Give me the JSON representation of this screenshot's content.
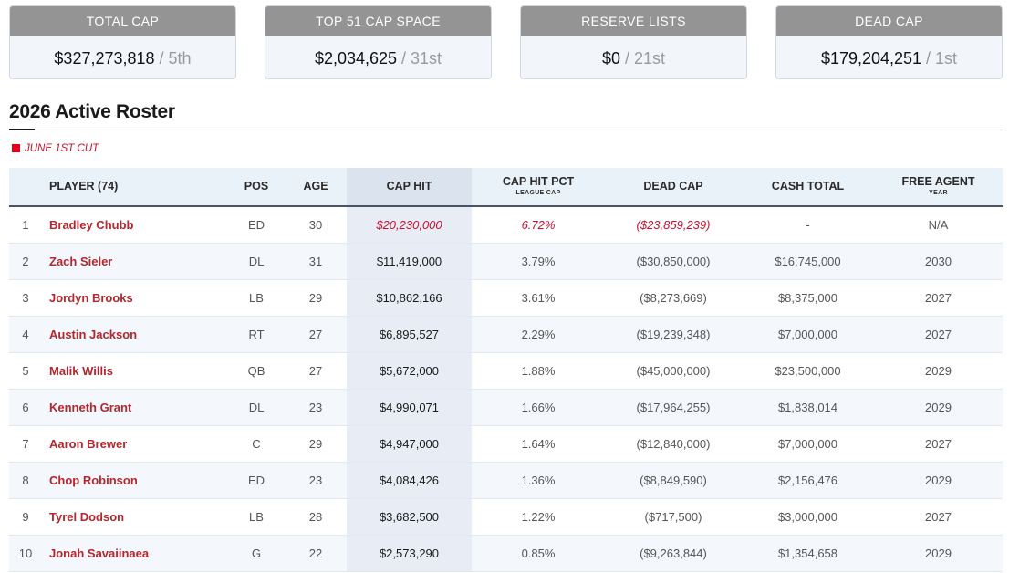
{
  "summary_cards": [
    {
      "label": "TOTAL CAP",
      "value": "$327,273,818",
      "rank": " / 5th"
    },
    {
      "label": "TOP 51 CAP SPACE",
      "value": "$2,034,625",
      "rank": " / 31st"
    },
    {
      "label": "RESERVE LISTS",
      "value": "$0",
      "rank": " / 21st"
    },
    {
      "label": "DEAD CAP",
      "value": "$179,204,251",
      "rank": " / 1st"
    }
  ],
  "section": {
    "title": "2026 Active Roster",
    "legend_label": "JUNE 1ST CUT",
    "legend_color": "#e3001b"
  },
  "table": {
    "headers": {
      "player": "PLAYER (74)",
      "pos": "POS",
      "age": "AGE",
      "cap_hit": "CAP HIT",
      "cap_hit_pct": "CAP HIT PCT",
      "cap_hit_pct_sub": "LEAGUE CAP",
      "dead_cap": "DEAD CAP",
      "cash_total": "CASH TOTAL",
      "free_agent": "FREE AGENT",
      "free_agent_sub": "YEAR"
    },
    "rows": [
      {
        "num": "1",
        "player": "Bradley Chubb",
        "pos": "ED",
        "age": "30",
        "cap_hit": "$20,230,000",
        "cap_hit_pct": "6.72%",
        "dead_cap": "($23,859,239)",
        "cash_total": "-",
        "fa_year": "N/A"
      },
      {
        "num": "2",
        "player": "Zach Sieler",
        "pos": "DL",
        "age": "31",
        "cap_hit": "$11,419,000",
        "cap_hit_pct": "3.79%",
        "dead_cap": "($30,850,000)",
        "cash_total": "$16,745,000",
        "fa_year": "2030"
      },
      {
        "num": "3",
        "player": "Jordyn Brooks",
        "pos": "LB",
        "age": "29",
        "cap_hit": "$10,862,166",
        "cap_hit_pct": "3.61%",
        "dead_cap": "($8,273,669)",
        "cash_total": "$8,375,000",
        "fa_year": "2027"
      },
      {
        "num": "4",
        "player": "Austin Jackson",
        "pos": "RT",
        "age": "27",
        "cap_hit": "$6,895,527",
        "cap_hit_pct": "2.29%",
        "dead_cap": "($19,239,348)",
        "cash_total": "$7,000,000",
        "fa_year": "2027"
      },
      {
        "num": "5",
        "player": "Malik Willis",
        "pos": "QB",
        "age": "27",
        "cap_hit": "$5,672,000",
        "cap_hit_pct": "1.88%",
        "dead_cap": "($45,000,000)",
        "cash_total": "$23,500,000",
        "fa_year": "2029"
      },
      {
        "num": "6",
        "player": "Kenneth Grant",
        "pos": "DL",
        "age": "23",
        "cap_hit": "$4,990,071",
        "cap_hit_pct": "1.66%",
        "dead_cap": "($17,964,255)",
        "cash_total": "$1,838,014",
        "fa_year": "2029"
      },
      {
        "num": "7",
        "player": "Aaron Brewer",
        "pos": "C",
        "age": "29",
        "cap_hit": "$4,947,000",
        "cap_hit_pct": "1.64%",
        "dead_cap": "($12,840,000)",
        "cash_total": "$7,000,000",
        "fa_year": "2027"
      },
      {
        "num": "8",
        "player": "Chop Robinson",
        "pos": "ED",
        "age": "23",
        "cap_hit": "$4,084,426",
        "cap_hit_pct": "1.36%",
        "dead_cap": "($8,849,590)",
        "cash_total": "$2,156,476",
        "fa_year": "2029"
      },
      {
        "num": "9",
        "player": "Tyrel Dodson",
        "pos": "LB",
        "age": "28",
        "cap_hit": "$3,682,500",
        "cap_hit_pct": "1.22%",
        "dead_cap": "($717,500)",
        "cash_total": "$3,000,000",
        "fa_year": "2027"
      },
      {
        "num": "10",
        "player": "Jonah Savaiinaea",
        "pos": "G",
        "age": "22",
        "cap_hit": "$2,573,290",
        "cap_hit_pct": "0.85%",
        "dead_cap": "($9,263,844)",
        "cash_total": "$1,354,658",
        "fa_year": "2029"
      }
    ]
  }
}
